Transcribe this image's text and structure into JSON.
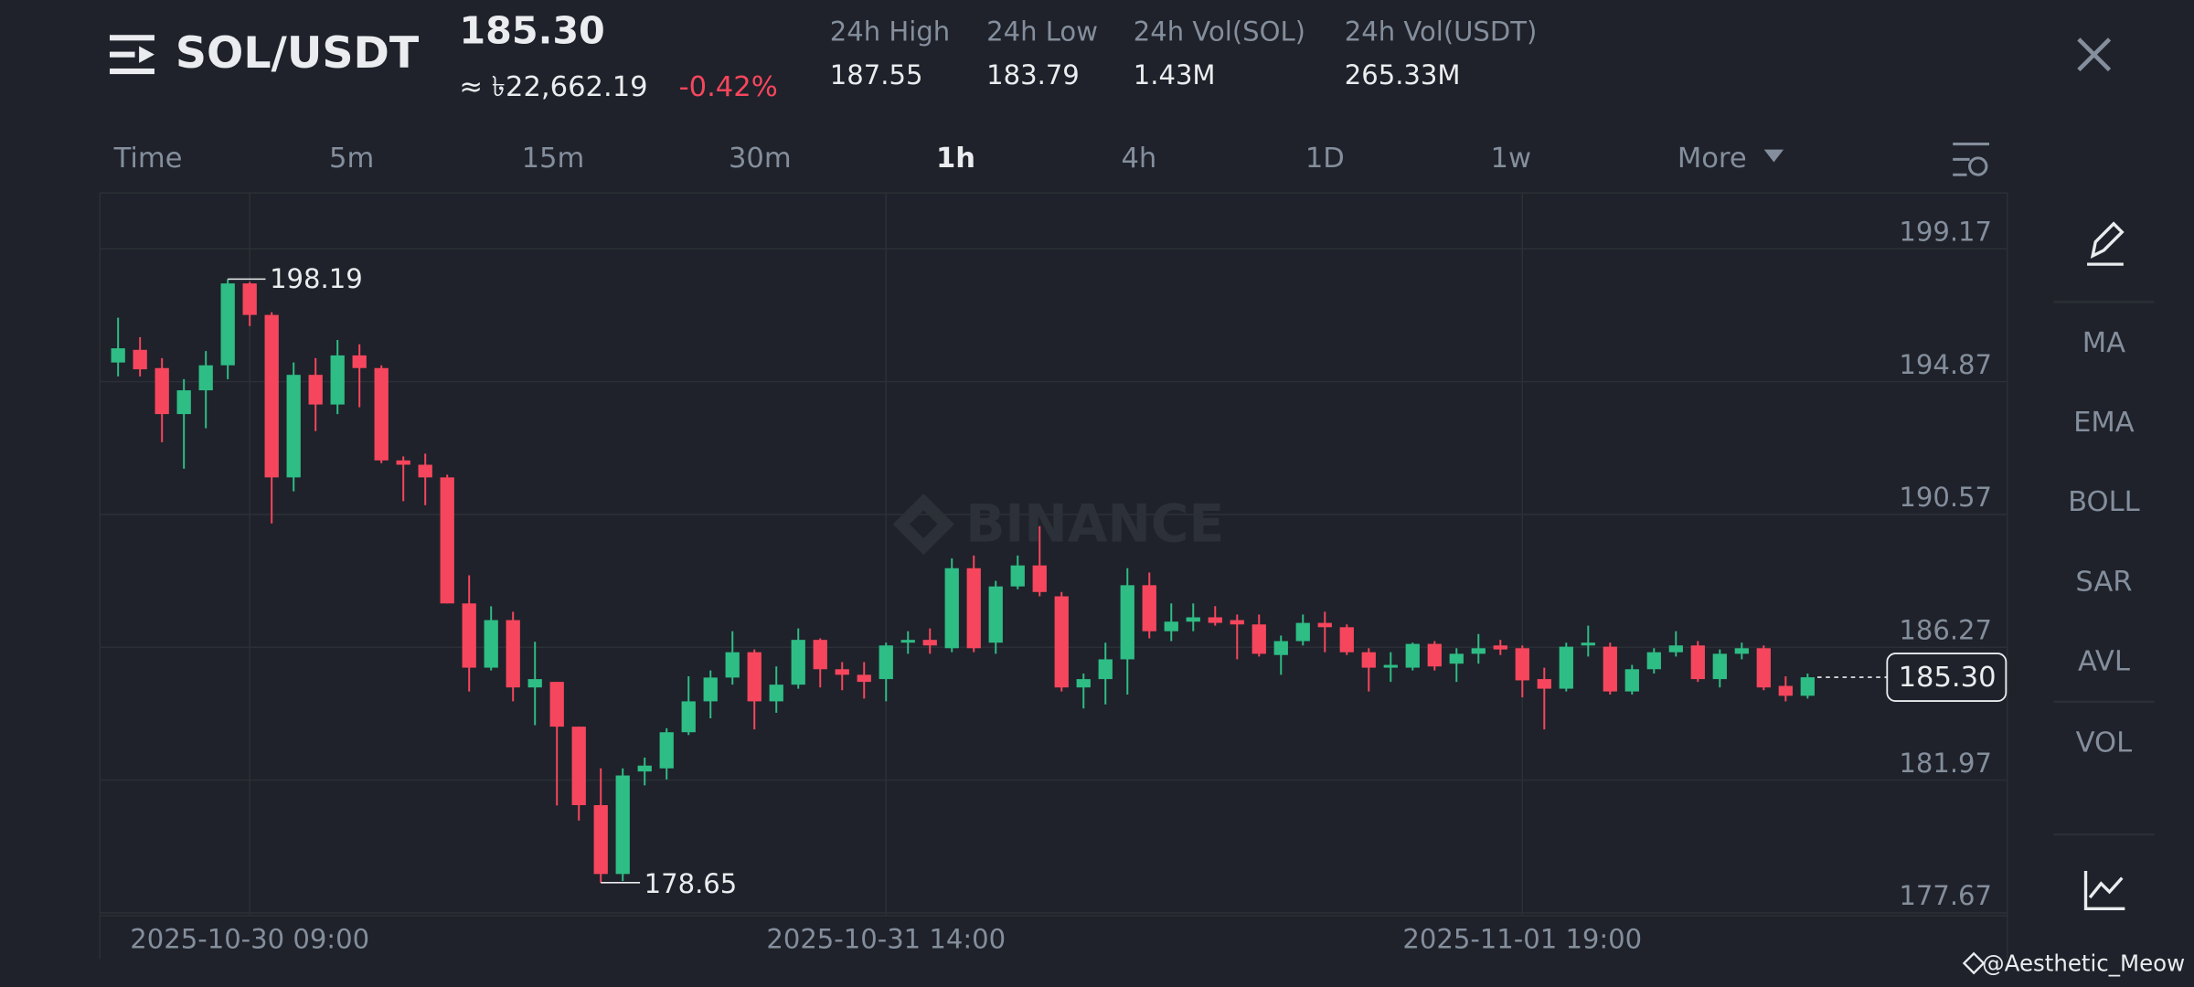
{
  "header": {
    "pair": "SOL/USDT",
    "price": "185.30",
    "fiat_price": "≈ ৳22,662.19",
    "change": "-0.42%",
    "stats": [
      {
        "label": "24h High",
        "value": "187.55"
      },
      {
        "label": "24h Low",
        "value": "183.79"
      },
      {
        "label": "24h Vol(SOL)",
        "value": "1.43M"
      },
      {
        "label": "24h Vol(USDT)",
        "value": "265.33M"
      }
    ]
  },
  "intervals": [
    "Time",
    "5m",
    "15m",
    "30m",
    "1h",
    "4h",
    "1D",
    "1w",
    "More"
  ],
  "indicators": [
    "MA",
    "EMA",
    "BOLL",
    "SAR",
    "AVL",
    "VOL"
  ],
  "watermark": "BINANCE",
  "credit": "@Aesthetic_Meow",
  "chart_data": {
    "type": "candlestick",
    "up_color": "#2ebd85",
    "down_color": "#f6465d",
    "candles": [
      {
        "o": 195.49,
        "h": 196.94,
        "l": 195.04,
        "c": 195.95
      },
      {
        "o": 195.9,
        "h": 196.31,
        "l": 195.04,
        "c": 195.27
      },
      {
        "o": 195.31,
        "h": 195.63,
        "l": 192.91,
        "c": 193.82
      },
      {
        "o": 193.82,
        "h": 194.95,
        "l": 192.05,
        "c": 194.59
      },
      {
        "o": 194.59,
        "h": 195.86,
        "l": 193.36,
        "c": 195.4
      },
      {
        "o": 195.4,
        "h": 198.19,
        "l": 194.95,
        "c": 198.05
      },
      {
        "o": 198.05,
        "h": 198.1,
        "l": 196.67,
        "c": 197.03
      },
      {
        "o": 197.03,
        "h": 197.12,
        "l": 190.28,
        "c": 191.77
      },
      {
        "o": 191.77,
        "h": 195.49,
        "l": 191.32,
        "c": 195.09
      },
      {
        "o": 195.09,
        "h": 195.63,
        "l": 193.27,
        "c": 194.13
      },
      {
        "o": 194.13,
        "h": 196.22,
        "l": 193.82,
        "c": 195.72
      },
      {
        "o": 195.72,
        "h": 196.08,
        "l": 194.04,
        "c": 195.31
      },
      {
        "o": 195.31,
        "h": 195.4,
        "l": 192.23,
        "c": 192.32
      },
      {
        "o": 192.32,
        "h": 192.45,
        "l": 191.0,
        "c": 192.18
      },
      {
        "o": 192.18,
        "h": 192.54,
        "l": 190.87,
        "c": 191.77
      },
      {
        "o": 191.77,
        "h": 191.86,
        "l": 187.69,
        "c": 187.69
      },
      {
        "o": 187.69,
        "h": 188.6,
        "l": 184.84,
        "c": 185.61
      },
      {
        "o": 185.61,
        "h": 187.6,
        "l": 185.52,
        "c": 187.15
      },
      {
        "o": 187.15,
        "h": 187.42,
        "l": 184.52,
        "c": 184.97
      },
      {
        "o": 184.97,
        "h": 186.45,
        "l": 183.75,
        "c": 185.24
      },
      {
        "o": 185.15,
        "h": 185.15,
        "l": 181.15,
        "c": 183.7
      },
      {
        "o": 183.7,
        "h": 183.7,
        "l": 180.66,
        "c": 181.16
      },
      {
        "o": 181.16,
        "h": 182.35,
        "l": 178.65,
        "c": 178.93
      },
      {
        "o": 178.93,
        "h": 182.35,
        "l": 178.7,
        "c": 182.12
      },
      {
        "o": 182.25,
        "h": 182.7,
        "l": 181.8,
        "c": 182.44
      },
      {
        "o": 182.35,
        "h": 183.65,
        "l": 181.99,
        "c": 183.52
      },
      {
        "o": 183.52,
        "h": 185.33,
        "l": 183.43,
        "c": 184.52
      },
      {
        "o": 184.52,
        "h": 185.52,
        "l": 183.97,
        "c": 185.29
      },
      {
        "o": 185.29,
        "h": 186.79,
        "l": 185.06,
        "c": 186.11
      },
      {
        "o": 186.11,
        "h": 186.2,
        "l": 183.61,
        "c": 184.52
      },
      {
        "o": 184.52,
        "h": 185.65,
        "l": 184.15,
        "c": 185.06
      },
      {
        "o": 185.06,
        "h": 186.88,
        "l": 184.93,
        "c": 186.51
      },
      {
        "o": 186.51,
        "h": 186.56,
        "l": 184.97,
        "c": 185.56
      },
      {
        "o": 185.56,
        "h": 185.79,
        "l": 184.88,
        "c": 185.38
      },
      {
        "o": 185.38,
        "h": 185.79,
        "l": 184.61,
        "c": 185.15
      },
      {
        "o": 185.24,
        "h": 186.42,
        "l": 184.52,
        "c": 186.33
      },
      {
        "o": 186.42,
        "h": 186.79,
        "l": 186.06,
        "c": 186.51
      },
      {
        "o": 186.51,
        "h": 186.88,
        "l": 186.06,
        "c": 186.33
      },
      {
        "o": 186.24,
        "h": 189.15,
        "l": 186.11,
        "c": 188.83
      },
      {
        "o": 188.83,
        "h": 189.24,
        "l": 186.11,
        "c": 186.24
      },
      {
        "o": 186.42,
        "h": 188.42,
        "l": 186.06,
        "c": 188.24
      },
      {
        "o": 188.24,
        "h": 189.24,
        "l": 188.15,
        "c": 188.92
      },
      {
        "o": 188.92,
        "h": 190.19,
        "l": 187.92,
        "c": 188.06
      },
      {
        "o": 187.92,
        "h": 188.06,
        "l": 184.84,
        "c": 184.97
      },
      {
        "o": 184.97,
        "h": 185.42,
        "l": 184.29,
        "c": 185.24
      },
      {
        "o": 185.24,
        "h": 186.42,
        "l": 184.42,
        "c": 185.88
      },
      {
        "o": 185.88,
        "h": 188.83,
        "l": 184.74,
        "c": 188.28
      },
      {
        "o": 188.28,
        "h": 188.69,
        "l": 186.56,
        "c": 186.79
      },
      {
        "o": 186.79,
        "h": 187.69,
        "l": 186.47,
        "c": 187.1
      },
      {
        "o": 187.1,
        "h": 187.69,
        "l": 186.79,
        "c": 187.24
      },
      {
        "o": 187.24,
        "h": 187.6,
        "l": 186.97,
        "c": 187.06
      },
      {
        "o": 187.15,
        "h": 187.33,
        "l": 185.88,
        "c": 187.01
      },
      {
        "o": 187.01,
        "h": 187.33,
        "l": 185.97,
        "c": 186.06
      },
      {
        "o": 186.02,
        "h": 186.65,
        "l": 185.38,
        "c": 186.47
      },
      {
        "o": 186.47,
        "h": 187.33,
        "l": 186.33,
        "c": 187.06
      },
      {
        "o": 187.06,
        "h": 187.42,
        "l": 186.11,
        "c": 186.92
      },
      {
        "o": 186.92,
        "h": 187.01,
        "l": 186.02,
        "c": 186.11
      },
      {
        "o": 186.11,
        "h": 186.24,
        "l": 184.84,
        "c": 185.61
      },
      {
        "o": 185.61,
        "h": 186.11,
        "l": 185.15,
        "c": 185.7
      },
      {
        "o": 185.61,
        "h": 186.42,
        "l": 185.52,
        "c": 186.38
      },
      {
        "o": 186.38,
        "h": 186.47,
        "l": 185.52,
        "c": 185.65
      },
      {
        "o": 185.74,
        "h": 186.24,
        "l": 185.15,
        "c": 186.06
      },
      {
        "o": 186.06,
        "h": 186.7,
        "l": 185.74,
        "c": 186.24
      },
      {
        "o": 186.33,
        "h": 186.51,
        "l": 186.02,
        "c": 186.2
      },
      {
        "o": 186.24,
        "h": 186.33,
        "l": 184.65,
        "c": 185.2
      },
      {
        "o": 185.24,
        "h": 185.61,
        "l": 183.61,
        "c": 184.93
      },
      {
        "o": 184.93,
        "h": 186.42,
        "l": 184.84,
        "c": 186.29
      },
      {
        "o": 186.33,
        "h": 186.97,
        "l": 185.97,
        "c": 186.42
      },
      {
        "o": 186.29,
        "h": 186.42,
        "l": 184.74,
        "c": 184.84
      },
      {
        "o": 184.84,
        "h": 185.7,
        "l": 184.74,
        "c": 185.56
      },
      {
        "o": 185.56,
        "h": 186.24,
        "l": 185.42,
        "c": 186.11
      },
      {
        "o": 186.11,
        "h": 186.79,
        "l": 185.97,
        "c": 186.33
      },
      {
        "o": 186.33,
        "h": 186.47,
        "l": 185.15,
        "c": 185.24
      },
      {
        "o": 185.24,
        "h": 186.2,
        "l": 184.97,
        "c": 186.06
      },
      {
        "o": 186.06,
        "h": 186.42,
        "l": 185.88,
        "c": 186.24
      },
      {
        "o": 186.24,
        "h": 186.33,
        "l": 184.88,
        "c": 184.97
      },
      {
        "o": 185.02,
        "h": 185.33,
        "l": 184.52,
        "c": 184.7
      },
      {
        "o": 184.7,
        "h": 185.42,
        "l": 184.61,
        "c": 185.3
      }
    ],
    "last_label": "185.30",
    "ylim": [
      177.58,
      200.98
    ],
    "yticks": [
      177.67,
      181.97,
      186.27,
      190.57,
      194.87,
      199.17
    ],
    "xticks": [
      {
        "value": 6,
        "label": "2025-10-30 09:00"
      },
      {
        "value": 35,
        "label": "2025-10-31 14:00"
      },
      {
        "value": 64,
        "label": "2025-11-01 19:00"
      }
    ],
    "grid": true
  }
}
